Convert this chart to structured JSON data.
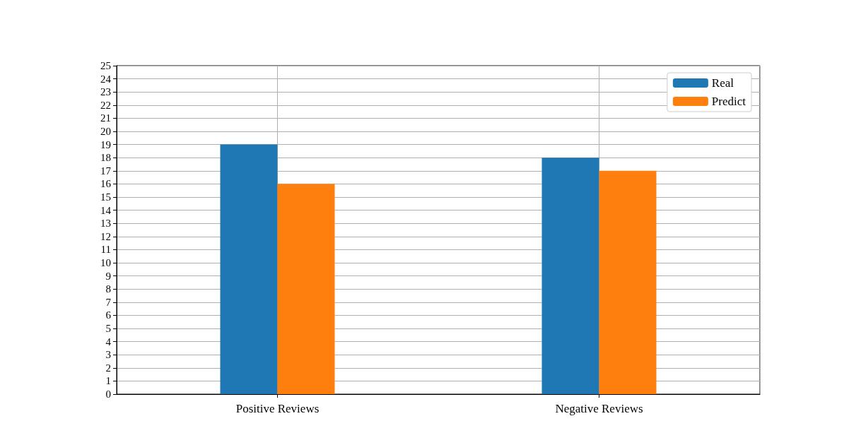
{
  "chart_data": {
    "type": "bar",
    "categories": [
      "Positive Reviews",
      "Negative Reviews"
    ],
    "series": [
      {
        "name": "Real",
        "color": "#1f77b4",
        "values": [
          19,
          18
        ]
      },
      {
        "name": "Predict",
        "color": "#ff7f0e",
        "values": [
          16,
          17
        ]
      }
    ],
    "ylim": [
      0,
      25
    ],
    "yticks": [
      0,
      1,
      2,
      3,
      4,
      5,
      6,
      7,
      8,
      9,
      10,
      11,
      12,
      13,
      14,
      15,
      16,
      17,
      18,
      19,
      20,
      21,
      22,
      23,
      24,
      25
    ],
    "grid": true,
    "legend": "top right"
  }
}
